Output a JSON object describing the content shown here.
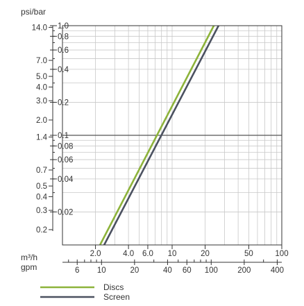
{
  "chart_data": {
    "type": "line",
    "title": "",
    "y_axis_label": "psi/bar",
    "flow_axis_label_m3h": "m³/h",
    "flow_axis_label_gpm": "gpm",
    "scale": "log-log",
    "grid": true,
    "legend_position": "bottom-left",
    "x_m3h_range": [
      1,
      100
    ],
    "y_bar_range": [
      0.01,
      1.0
    ],
    "reference_line_bar": 0.1,
    "psi_ticks": [
      {
        "value": 14.0,
        "label": "14.0"
      },
      {
        "value": 7.0,
        "label": "7.0"
      },
      {
        "value": 5.0,
        "label": "5.0"
      },
      {
        "value": 4.0,
        "label": "4.0"
      },
      {
        "value": 3.0,
        "label": "3.0"
      },
      {
        "value": 2.0,
        "label": "2.0"
      },
      {
        "value": 1.4,
        "label": "1.4"
      },
      {
        "value": 0.7,
        "label": "0.7"
      },
      {
        "value": 0.5,
        "label": "0.5"
      },
      {
        "value": 0.4,
        "label": "0.4"
      },
      {
        "value": 0.3,
        "label": "0.3"
      },
      {
        "value": 0.2,
        "label": "0.2"
      }
    ],
    "bar_ticks": [
      {
        "value": 1.0,
        "label": "1.0"
      },
      {
        "value": 0.8,
        "label": "0.8"
      },
      {
        "value": 0.6,
        "label": "0.6"
      },
      {
        "value": 0.4,
        "label": "0.4"
      },
      {
        "value": 0.2,
        "label": "0.2"
      },
      {
        "value": 0.1,
        "label": "0.1"
      },
      {
        "value": 0.08,
        "label": "0.08"
      },
      {
        "value": 0.06,
        "label": "0.06"
      },
      {
        "value": 0.04,
        "label": "0.04"
      },
      {
        "value": 0.02,
        "label": "0.02"
      }
    ],
    "m3h_ticks": [
      {
        "value": 2.0,
        "label": "2.0"
      },
      {
        "value": 4.0,
        "label": "4.0"
      },
      {
        "value": 6.0,
        "label": "6.0"
      },
      {
        "value": 10,
        "label": "10"
      },
      {
        "value": 20,
        "label": "20"
      },
      {
        "value": 50,
        "label": "50"
      },
      {
        "value": 100,
        "label": "100"
      }
    ],
    "gpm_ticks": [
      {
        "value": 6,
        "label": "6"
      },
      {
        "value": 10,
        "label": "10"
      },
      {
        "value": 20,
        "label": "20"
      },
      {
        "value": 40,
        "label": "40"
      },
      {
        "value": 60,
        "label": "60"
      },
      {
        "value": 100,
        "label": "100"
      },
      {
        "value": 200,
        "label": "200"
      },
      {
        "value": 400,
        "label": "400"
      }
    ],
    "series": [
      {
        "name": "Discs",
        "color": "#8db33a",
        "points": [
          {
            "x": 2.2,
            "y": 0.01
          },
          {
            "x": 24.0,
            "y": 1.0
          }
        ]
      },
      {
        "name": "Screen",
        "color": "#4b5160",
        "points": [
          {
            "x": 2.4,
            "y": 0.01
          },
          {
            "x": 26.5,
            "y": 1.0
          }
        ]
      }
    ]
  }
}
